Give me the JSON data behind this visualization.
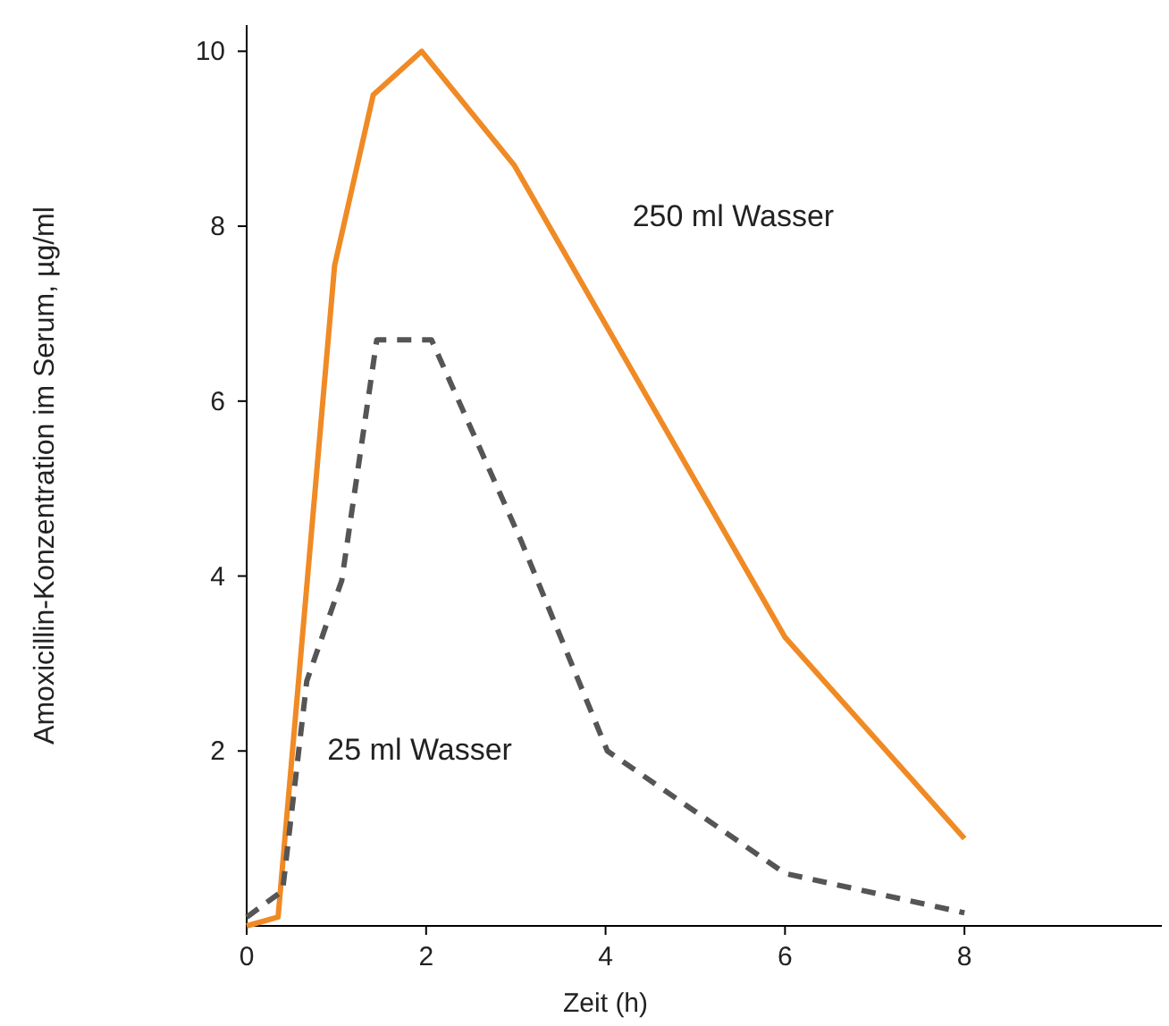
{
  "chart_data": {
    "type": "line",
    "xlabel": "Zeit (h)",
    "ylabel": "Amoxicillin-Konzentration im Serum,  µg/ml",
    "xlim": [
      0,
      10.2
    ],
    "ylim": [
      0,
      10.3
    ],
    "xticks": [
      0,
      2,
      4,
      6,
      8
    ],
    "yticks": [
      2,
      4,
      6,
      8,
      10
    ],
    "grid": false,
    "marker": "none",
    "series": [
      {
        "name": "250 ml Wasser",
        "color": "#f08a24",
        "line_style": "solid",
        "x": [
          0,
          0.35,
          0.98,
          1.41,
          1.95,
          2.98,
          6,
          8
        ],
        "values": [
          0,
          0.1,
          7.55,
          9.5,
          10,
          8.7,
          3.3,
          1.0
        ]
      },
      {
        "name": "25 ml Wasser",
        "color": "#555555",
        "line_style": "dashed",
        "x": [
          0,
          0.4,
          0.67,
          1.06,
          1.45,
          2.06,
          3.06,
          4.02,
          6,
          8
        ],
        "values": [
          0.1,
          0.4,
          2.8,
          3.95,
          6.7,
          6.7,
          4.4,
          2.0,
          0.6,
          0.15
        ]
      }
    ]
  }
}
